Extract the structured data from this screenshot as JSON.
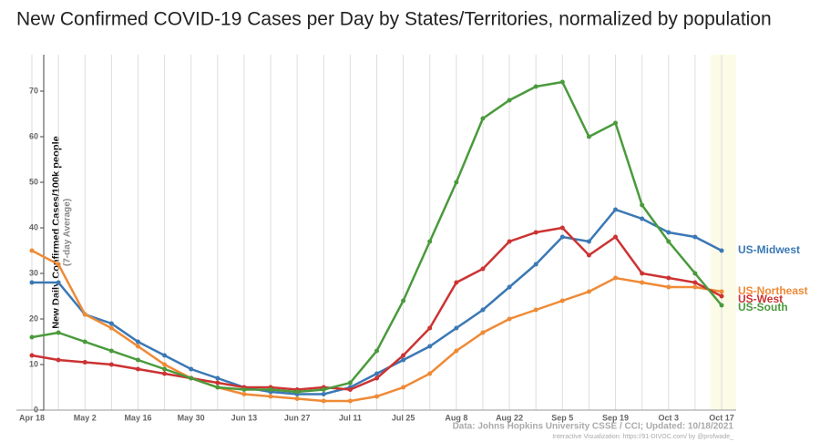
{
  "chart_data": {
    "type": "line",
    "title": "New Confirmed COVID-19 Cases per Day by States/Territories, normalized by population",
    "y_label": "New Daily Confirmed Cases/100k people",
    "y_sublabel": "(7-day Average)",
    "source": "Data: Johns Hopkins University CSSE / CCI; Updated: 10/18/2021",
    "credit": "Interactive Visualization: https://91-DIVOC.com/ by @profwade_",
    "categories": [
      "Apr 18",
      null,
      "May 2",
      null,
      "May 16",
      null,
      "May 30",
      null,
      "Jun 13",
      null,
      "Jun 27",
      null,
      "Jul 11",
      null,
      "Jul 25",
      null,
      "Aug 8",
      null,
      "Aug 22",
      null,
      "Sep 5",
      null,
      "Sep 19",
      null,
      "Oct 3",
      null,
      "Oct 17"
    ],
    "series": [
      {
        "name": "US-Midwest",
        "color": "#3b78b4",
        "values": [
          28,
          28,
          21,
          19,
          15,
          12,
          9,
          7,
          5,
          4,
          3.5,
          3.5,
          5,
          8,
          11,
          14,
          18,
          22,
          27,
          32,
          38,
          37,
          44,
          42,
          39,
          38,
          35
        ]
      },
      {
        "name": "US-Northeast",
        "color": "#ef8a36",
        "values": [
          35,
          32,
          21,
          18,
          14,
          10,
          7,
          5,
          3.5,
          3,
          2.5,
          2,
          2,
          3,
          5,
          8,
          13,
          17,
          20,
          22,
          24,
          26,
          29,
          28,
          27,
          27,
          26
        ]
      },
      {
        "name": "US-West",
        "color": "#cc3333",
        "values": [
          12,
          11,
          10.5,
          10,
          9,
          8,
          7,
          6,
          5,
          5,
          4.5,
          5,
          4.5,
          7,
          12,
          18,
          28,
          31,
          37,
          39,
          40,
          34,
          38,
          30,
          29,
          28,
          25
        ]
      },
      {
        "name": "US-South",
        "color": "#4a9a3c",
        "values": [
          16,
          17,
          15,
          13,
          11,
          9,
          7,
          5,
          4.5,
          4.5,
          4,
          4.5,
          6,
          13,
          24,
          37,
          50,
          64,
          68,
          71,
          72,
          60,
          63,
          45,
          37,
          30,
          23
        ]
      }
    ],
    "ylim": [
      0,
      78
    ],
    "yticks": [
      0,
      10,
      20,
      30,
      40,
      50,
      60,
      70
    ]
  }
}
